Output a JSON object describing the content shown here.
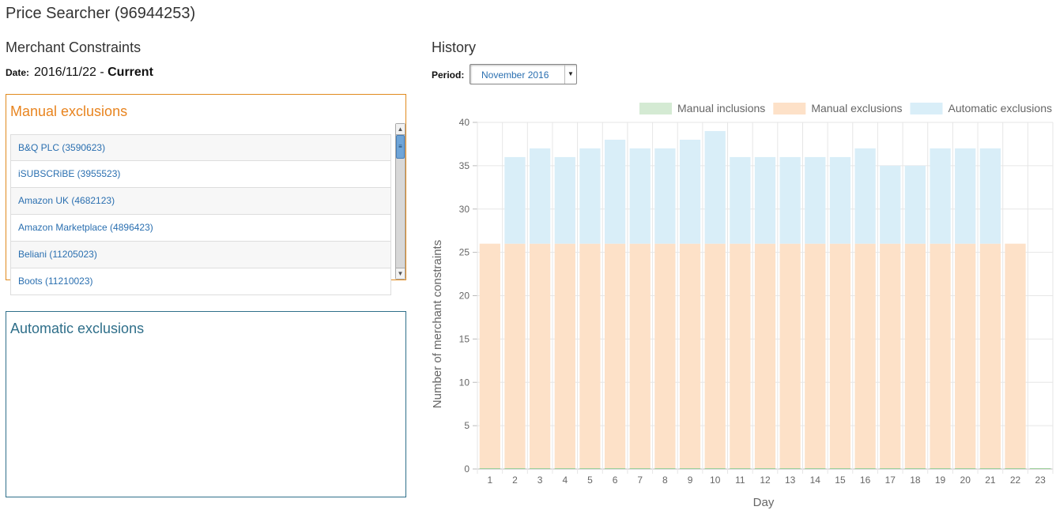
{
  "page": {
    "title": "Price Searcher (96944253)"
  },
  "constraints": {
    "title": "Merchant Constraints",
    "date_label": "Date:",
    "date_value": "2016/11/22",
    "date_separator": " - ",
    "date_status": "Current"
  },
  "manual_panel": {
    "title": "Manual exclusions",
    "items": [
      "B&Q PLC (3590623)",
      "iSUBSCRiBE (3955523)",
      "Amazon UK (4682123)",
      "Amazon Marketplace (4896423)",
      "Beliani (11205023)",
      "Boots (11210023)"
    ]
  },
  "auto_panel": {
    "title": "Automatic exclusions"
  },
  "history": {
    "title": "History",
    "period_label": "Period:",
    "period_value": "November 2016"
  },
  "colors": {
    "manual_inclusions": "#d4ead3",
    "manual_exclusions": "#fde1c8",
    "automatic_exclusions": "#d9eef8",
    "manual_panel_border": "#e08a1e",
    "auto_panel_border": "#2f6f8a"
  },
  "chart_data": {
    "type": "bar",
    "stacked": true,
    "xlabel": "Day",
    "ylabel": "Number of merchant constraints",
    "ylim": [
      0,
      40
    ],
    "yticks": [
      0,
      5,
      10,
      15,
      20,
      25,
      30,
      35,
      40
    ],
    "grid": true,
    "legend_position": "top-right",
    "categories": [
      "1",
      "2",
      "3",
      "4",
      "5",
      "6",
      "7",
      "8",
      "9",
      "10",
      "11",
      "12",
      "13",
      "14",
      "15",
      "16",
      "17",
      "18",
      "19",
      "20",
      "21",
      "22",
      "23"
    ],
    "series": [
      {
        "name": "Manual inclusions",
        "values": [
          0,
          0,
          0,
          0,
          0,
          0,
          0,
          0,
          0,
          0,
          0,
          0,
          0,
          0,
          0,
          0,
          0,
          0,
          0,
          0,
          0,
          0,
          0
        ]
      },
      {
        "name": "Manual exclusions",
        "values": [
          26,
          26,
          26,
          26,
          26,
          26,
          26,
          26,
          26,
          26,
          26,
          26,
          26,
          26,
          26,
          26,
          26,
          26,
          26,
          26,
          26,
          26,
          0
        ]
      },
      {
        "name": "Automatic exclusions",
        "values": [
          0,
          10,
          11,
          10,
          11,
          12,
          11,
          11,
          12,
          13,
          10,
          10,
          10,
          10,
          10,
          11,
          9,
          9,
          11,
          11,
          11,
          0,
          0
        ]
      }
    ]
  }
}
